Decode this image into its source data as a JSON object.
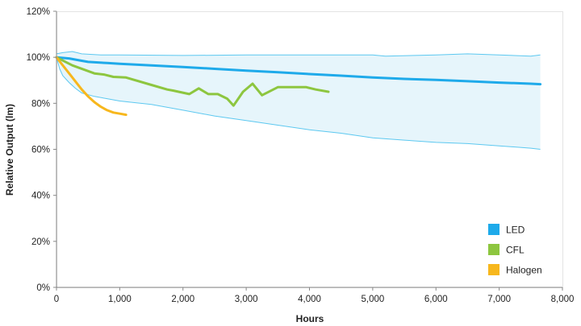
{
  "chart_data": {
    "type": "line",
    "xlabel": "Hours",
    "ylabel": "Relative Output (lm)",
    "xlim": [
      0,
      8000
    ],
    "ylim": [
      0,
      120
    ],
    "x_ticks": [
      "0",
      "1,000",
      "2,000",
      "3,000",
      "4,000",
      "5,000",
      "6,000",
      "7,000",
      "8,000"
    ],
    "y_ticks": [
      "0%",
      "20%",
      "40%",
      "60%",
      "80%",
      "100%",
      "120%"
    ],
    "legend_position": "bottom-right",
    "grid": false,
    "band": {
      "color": "#e6f5fb",
      "edge_color": "#5cc8f0",
      "upper": {
        "x": [
          0,
          100,
          250,
          400,
          700,
          1000,
          2000,
          3000,
          4000,
          5000,
          5200,
          6000,
          6500,
          7000,
          7500,
          7650
        ],
        "y": [
          101.5,
          102,
          102.5,
          101.5,
          101,
          101,
          100.8,
          101,
          101,
          101,
          100.5,
          101,
          101.5,
          101,
          100.5,
          101
        ]
      },
      "lower": {
        "x": [
          0,
          50,
          100,
          200,
          300,
          400,
          600,
          800,
          1000,
          1500,
          2000,
          2500,
          3000,
          3500,
          4000,
          4500,
          5000,
          5500,
          6000,
          6500,
          7000,
          7500,
          7650
        ],
        "y": [
          100,
          95,
          92,
          89,
          86.5,
          84.5,
          83,
          82,
          81,
          79.5,
          77,
          74.5,
          72.5,
          70.5,
          68.5,
          67,
          65,
          64,
          63,
          62.5,
          61.5,
          60.5,
          60
        ]
      }
    },
    "series": [
      {
        "name": "LED",
        "color": "#1eaaea",
        "x": [
          0,
          200,
          400,
          500,
          800,
          1000,
          1500,
          2000,
          2500,
          3000,
          3500,
          4000,
          4500,
          5000,
          5500,
          6000,
          6500,
          7000,
          7500,
          7650
        ],
        "y": [
          100,
          99.5,
          98.5,
          98,
          97.5,
          97.2,
          96.5,
          95.8,
          95,
          94.2,
          93.5,
          92.7,
          92,
          91.2,
          90.6,
          90.2,
          89.6,
          89,
          88.5,
          88.3
        ]
      },
      {
        "name": "CFL",
        "color": "#8dc63f",
        "x": [
          0,
          250,
          500,
          600,
          750,
          900,
          1100,
          1500,
          1750,
          1850,
          2100,
          2250,
          2400,
          2550,
          2700,
          2800,
          2950,
          3100,
          3250,
          3500,
          3800,
          3950,
          4100,
          4300
        ],
        "y": [
          100,
          96.5,
          94,
          93,
          92.5,
          91.5,
          91.2,
          88,
          86,
          85.5,
          84,
          86.5,
          84,
          84,
          82,
          79,
          85,
          88.5,
          83.5,
          87,
          87,
          87,
          86,
          85
        ]
      },
      {
        "name": "Halogen",
        "color": "#f7b71d",
        "x": [
          0,
          100,
          200,
          300,
          400,
          500,
          600,
          700,
          800,
          900,
          1000,
          1100
        ],
        "y": [
          100,
          96.5,
          93,
          89.5,
          86,
          83,
          80.5,
          78.5,
          77,
          76,
          75.5,
          75
        ]
      }
    ]
  }
}
